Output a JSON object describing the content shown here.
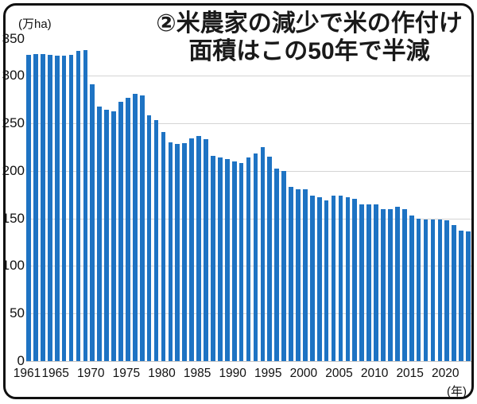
{
  "header": {
    "title_line1": "②米農家の減少で米の作付け",
    "title_line2": "面積はこの50年で半減"
  },
  "chart_data": {
    "type": "bar",
    "title": "②米農家の減少で米の作付け面積はこの50年で半減",
    "ylabel": "(万ha)",
    "xlabel": "(年)",
    "ylim": [
      0,
      350
    ],
    "grid": true,
    "y_ticks": [
      0,
      50,
      100,
      150,
      200,
      250,
      300,
      350
    ],
    "x_tick_years": [
      1961,
      1965,
      1970,
      1975,
      1980,
      1985,
      1990,
      1995,
      2000,
      2005,
      2010,
      2015,
      2020
    ],
    "bar_color": "#1e73c3",
    "gridline_color": "#d4d4d4",
    "x": [
      1961,
      1962,
      1963,
      1964,
      1965,
      1966,
      1967,
      1968,
      1969,
      1970,
      1971,
      1972,
      1973,
      1974,
      1975,
      1976,
      1977,
      1978,
      1979,
      1980,
      1981,
      1982,
      1983,
      1984,
      1985,
      1986,
      1987,
      1988,
      1989,
      1990,
      1991,
      1992,
      1993,
      1994,
      1995,
      1996,
      1997,
      1998,
      1999,
      2000,
      2001,
      2002,
      2003,
      2004,
      2005,
      2006,
      2007,
      2008,
      2009,
      2010,
      2011,
      2012,
      2013,
      2014,
      2015,
      2016,
      2017,
      2018,
      2019,
      2020,
      2021,
      2022,
      2023
    ],
    "values": [
      322,
      323,
      323,
      322,
      321,
      321,
      322,
      326,
      327,
      291,
      268,
      264,
      263,
      273,
      277,
      281,
      279,
      258,
      253,
      241,
      230,
      228,
      229,
      234,
      237,
      233,
      216,
      214,
      212,
      210,
      208,
      214,
      218,
      225,
      215,
      202,
      200,
      183,
      181,
      181,
      174,
      172,
      169,
      174,
      174,
      172,
      171,
      165,
      165,
      165,
      160,
      160,
      162,
      160,
      153,
      150,
      149,
      149,
      149,
      148,
      143,
      137,
      136
    ]
  }
}
